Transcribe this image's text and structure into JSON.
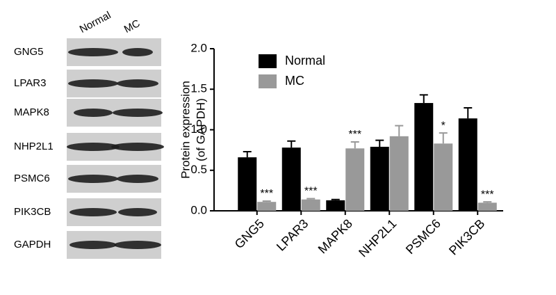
{
  "blot": {
    "columns": [
      "Normal",
      "MC"
    ],
    "rows": [
      "GNG5",
      "LPAR3",
      "MAPK8",
      "NHP2L1",
      "PSMC6",
      "PIK3CB",
      "GAPDH"
    ]
  },
  "chart_data": {
    "type": "bar",
    "ylabel": [
      "Protein expression",
      "(of GAPDH)"
    ],
    "categories": [
      "GNG5",
      "LPAR3",
      "MAPK8",
      "NHP2L1",
      "PSMC6",
      "PIK3CB"
    ],
    "series": [
      {
        "name": "Normal",
        "color": "#000000",
        "values": [
          0.66,
          0.78,
          0.13,
          0.79,
          1.33,
          1.14
        ],
        "errors": [
          0.07,
          0.08,
          0.01,
          0.08,
          0.1,
          0.13
        ]
      },
      {
        "name": "MC",
        "color": "#999999",
        "values": [
          0.11,
          0.14,
          0.77,
          0.92,
          0.83,
          0.1
        ],
        "errors": [
          0.01,
          0.01,
          0.08,
          0.13,
          0.13,
          0.01
        ],
        "annotations": [
          "***",
          "***",
          "***",
          null,
          "*",
          "***"
        ]
      }
    ],
    "ylim": [
      0,
      2
    ],
    "yticks": [
      {
        "value": 0,
        "label": "0.0"
      },
      {
        "value": 0.5,
        "label": "0.5"
      },
      {
        "value": 1,
        "label": "1.0"
      },
      {
        "value": 1.5,
        "label": "1.5"
      },
      {
        "value": 2,
        "label": "2.0"
      }
    ],
    "legend": "upper left"
  }
}
